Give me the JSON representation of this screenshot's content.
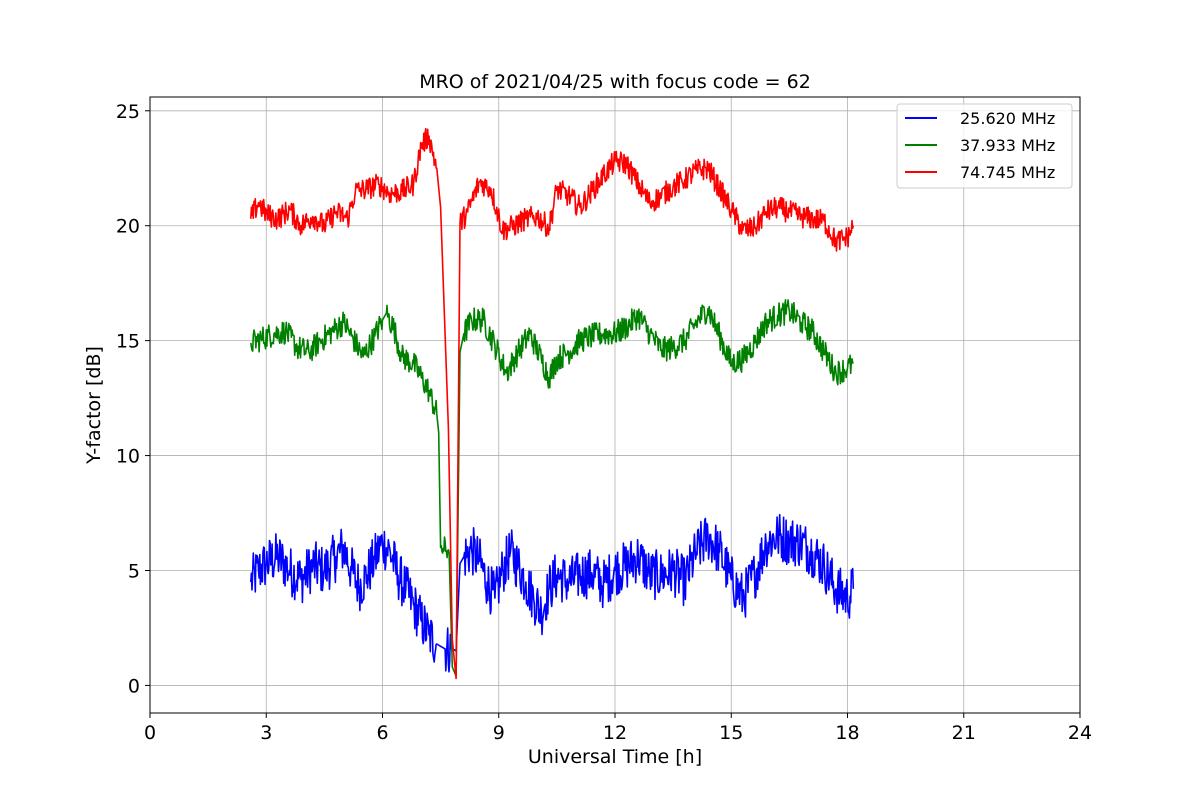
{
  "chart_data": {
    "type": "line",
    "title": "MRO of 2021/04/25 with focus code = 62",
    "xlabel": "Universal Time [h]",
    "ylabel": "Y-factor [dB]",
    "xlim": [
      0,
      24
    ],
    "ylim": [
      -1.2,
      25.6
    ],
    "xticks": [
      0,
      3,
      6,
      9,
      12,
      15,
      18,
      21,
      24
    ],
    "yticks": [
      0,
      5,
      10,
      15,
      20,
      25
    ],
    "grid": true,
    "legend_position": "top-right",
    "series": [
      {
        "name": "25.620 MHz",
        "color": "#0000ff",
        "noise_amplitude": 1.1,
        "x": [
          2.6,
          2.8,
          3.0,
          3.3,
          3.6,
          3.9,
          4.2,
          4.5,
          4.8,
          5.0,
          5.2,
          5.4,
          5.6,
          5.8,
          6.0,
          6.2,
          6.4,
          6.6,
          6.8,
          7.0,
          7.2,
          7.4,
          7.5,
          7.6,
          7.8,
          7.9,
          8.0,
          8.1,
          8.3,
          8.5,
          8.7,
          8.9,
          9.1,
          9.3,
          9.5,
          9.7,
          9.9,
          10.1,
          10.3,
          10.5,
          10.8,
          11.1,
          11.4,
          11.7,
          12.0,
          12.3,
          12.6,
          12.9,
          13.2,
          13.5,
          13.8,
          14.1,
          14.4,
          14.7,
          15.0,
          15.3,
          15.6,
          15.9,
          16.2,
          16.5,
          16.8,
          17.1,
          17.4,
          17.7,
          18.0,
          18.15
        ],
        "y": [
          4.5,
          5.0,
          5.3,
          5.6,
          5.0,
          4.6,
          5.2,
          5.0,
          5.6,
          6.0,
          5.0,
          4.3,
          4.8,
          5.5,
          6.2,
          5.8,
          4.8,
          4.2,
          3.5,
          2.8,
          2.2,
          1.8,
          1.7,
          1.6,
          1.6,
          1.5,
          5.3,
          5.6,
          5.9,
          5.4,
          4.5,
          3.8,
          5.0,
          5.8,
          5.2,
          4.5,
          3.8,
          3.2,
          4.2,
          4.8,
          4.5,
          4.8,
          4.9,
          4.4,
          5.0,
          5.2,
          5.6,
          4.8,
          4.8,
          5.0,
          4.5,
          5.8,
          6.5,
          5.8,
          4.6,
          3.8,
          4.8,
          6.2,
          6.5,
          6.3,
          6.2,
          5.8,
          5.2,
          4.2,
          3.8,
          4.2
        ]
      },
      {
        "name": "37.933 MHz",
        "color": "#008000",
        "noise_amplitude": 0.55,
        "x": [
          2.6,
          2.9,
          3.2,
          3.5,
          3.8,
          4.1,
          4.4,
          4.7,
          5.0,
          5.2,
          5.5,
          5.8,
          6.0,
          6.1,
          6.3,
          6.5,
          6.8,
          7.0,
          7.2,
          7.4,
          7.45,
          7.5,
          7.7,
          7.72,
          7.8,
          7.9,
          8.0,
          8.1,
          8.3,
          8.6,
          8.9,
          9.2,
          9.5,
          9.8,
          10.1,
          10.3,
          10.5,
          10.8,
          11.1,
          11.4,
          11.7,
          12.0,
          12.3,
          12.6,
          12.9,
          13.2,
          13.5,
          13.8,
          14.1,
          14.4,
          14.7,
          15.0,
          15.3,
          15.6,
          15.9,
          16.2,
          16.5,
          16.8,
          17.1,
          17.4,
          17.7,
          18.0,
          18.15
        ],
        "y": [
          14.9,
          15.1,
          15.3,
          15.4,
          14.7,
          14.5,
          15.0,
          15.4,
          15.8,
          15.2,
          14.3,
          15.2,
          15.9,
          16.2,
          15.5,
          14.3,
          14.0,
          13.4,
          12.8,
          11.8,
          11.0,
          6.0,
          5.9,
          5.8,
          0.8,
          0.4,
          14.5,
          15.3,
          15.9,
          15.9,
          14.8,
          13.6,
          14.5,
          15.3,
          14.2,
          13.4,
          14.2,
          14.5,
          15.0,
          15.2,
          15.3,
          15.3,
          15.6,
          16.1,
          15.3,
          14.6,
          14.7,
          15.0,
          15.8,
          16.4,
          15.2,
          14.0,
          14.2,
          14.9,
          15.8,
          16.1,
          16.3,
          15.8,
          15.4,
          14.5,
          13.6,
          13.8,
          14.0
        ]
      },
      {
        "name": "74.745 MHz",
        "color": "#ff0000",
        "noise_amplitude": 0.5,
        "x": [
          2.6,
          2.8,
          3.0,
          3.3,
          3.6,
          3.9,
          4.2,
          4.5,
          4.8,
          5.1,
          5.3,
          5.6,
          5.9,
          6.2,
          6.5,
          6.8,
          7.0,
          7.2,
          7.4,
          7.5,
          7.7,
          7.8,
          7.9,
          8.0,
          8.2,
          8.5,
          8.8,
          9.1,
          9.4,
          9.7,
          10.0,
          10.3,
          10.5,
          10.8,
          11.1,
          11.4,
          11.7,
          12.0,
          12.3,
          12.6,
          12.9,
          13.2,
          13.5,
          13.8,
          14.1,
          14.4,
          14.7,
          15.0,
          15.3,
          15.6,
          15.9,
          16.2,
          16.5,
          16.8,
          17.1,
          17.4,
          17.7,
          18.0,
          18.15
        ],
        "y": [
          20.3,
          21.0,
          20.5,
          20.3,
          20.7,
          20.0,
          20.4,
          20.0,
          20.6,
          20.3,
          21.5,
          21.6,
          21.8,
          21.4,
          21.5,
          21.8,
          23.5,
          23.9,
          22.5,
          20.8,
          11.2,
          2.0,
          0.3,
          20.1,
          20.6,
          21.9,
          21.6,
          19.8,
          20.0,
          20.3,
          20.4,
          19.9,
          21.6,
          21.3,
          20.8,
          21.5,
          22.2,
          22.8,
          22.7,
          21.8,
          21.0,
          21.3,
          21.7,
          22.0,
          22.4,
          22.5,
          21.6,
          20.7,
          19.8,
          19.9,
          20.6,
          20.8,
          20.6,
          20.4,
          20.3,
          20.2,
          19.3,
          19.5,
          20.0
        ]
      }
    ]
  }
}
